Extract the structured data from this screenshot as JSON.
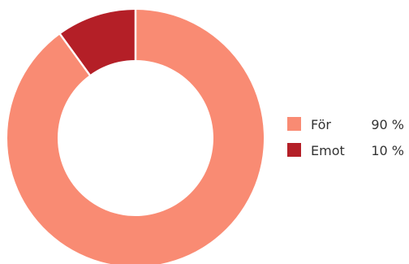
{
  "chart_data": {
    "type": "pie",
    "donut": true,
    "title": "",
    "legend_position": "right",
    "slices": [
      {
        "label": "För",
        "value": 90,
        "value_label": "90 %",
        "color": "#f98b73"
      },
      {
        "label": "Emot",
        "value": 10,
        "value_label": "10 %",
        "color": "#b41f27"
      }
    ]
  }
}
